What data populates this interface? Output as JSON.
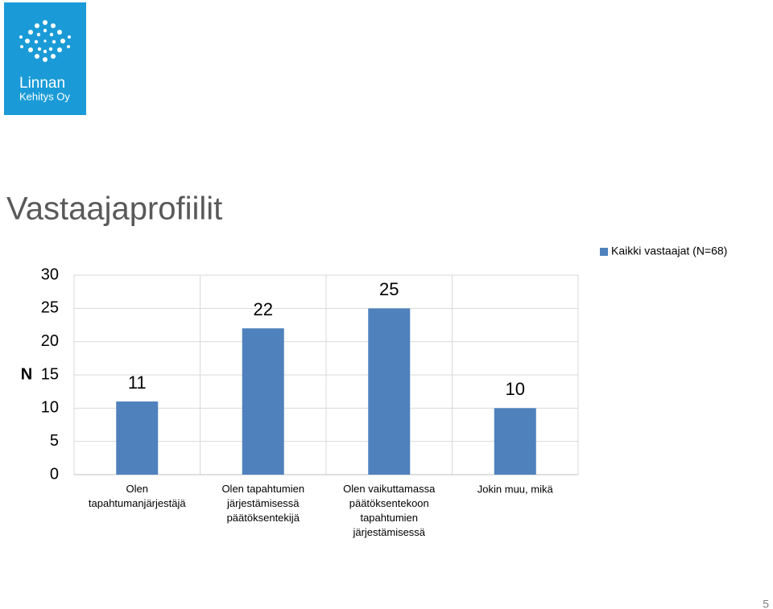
{
  "logo": {
    "line1": "Linnan",
    "line2": "Kehitys Oy"
  },
  "slide_title": "Vastaajaprofiilit",
  "page_number": "5",
  "chart_data": {
    "type": "bar",
    "ylabel": "N",
    "categories": [
      "Olen\ntapahtumanjärjestäjä",
      "Olen tapahtumien\njärjestämisessä\npäätöksentekijä",
      "Olen vaikuttamassa\npäätöksentekoon\ntapahtumien\njärjestämisessä",
      "Jokin muu, mikä"
    ],
    "series": [
      {
        "name": "Kaikki vastaajat (N=68)",
        "color": "#4f81bd",
        "values": [
          11,
          22,
          25,
          10
        ]
      }
    ],
    "ylim": [
      0,
      30
    ],
    "yticks": [
      0,
      5,
      10,
      15,
      20,
      25,
      30
    ],
    "grid": true,
    "legend": "top-right"
  }
}
